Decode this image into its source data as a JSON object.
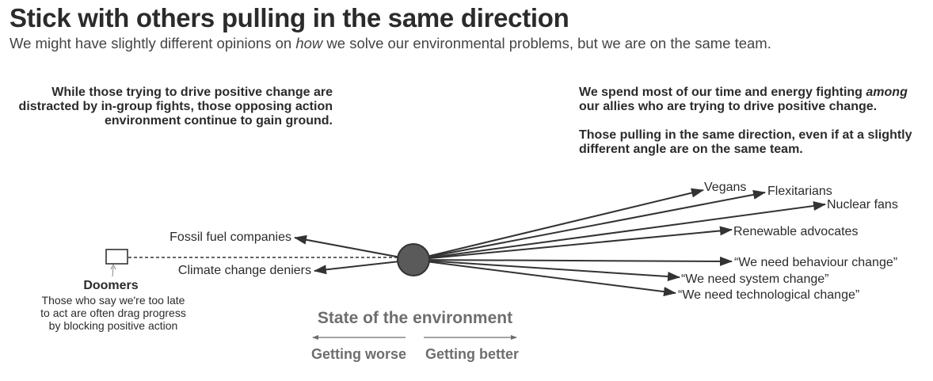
{
  "header": {
    "title": "Stick with others pulling in the same direction",
    "subtitle_pre": "We might have slightly different opinions on ",
    "subtitle_em": "how",
    "subtitle_post": " we solve our environmental problems, but we are on the same team."
  },
  "notes": {
    "left": "While those trying to drive positive change are distracted by in-group fights, those opposing action environment continue to gain ground.",
    "right_p1_pre": "We spend most of our time and energy fighting ",
    "right_p1_em": "among",
    "right_p1_post": " our allies who are trying to drive positive change.",
    "right_p2": "Those pulling in the same direction, even if at a slightly different angle are on the same team."
  },
  "groups": {
    "vegans": "Vegans",
    "flexitarians": "Flexitarians",
    "nuclear": "Nuclear fans",
    "renewable": "Renewable advocates",
    "behaviour": "“We need behaviour change”",
    "system": "“We need system change”",
    "tech": "“We need technological change”",
    "fossil": "Fossil fuel companies",
    "deniers": "Climate change deniers"
  },
  "doomers": {
    "title": "Doomers",
    "desc_1": "Those who say we're too late",
    "desc_2": "to act are often drag progress",
    "desc_3": "by blocking positive action"
  },
  "axis": {
    "title": "State of the environment",
    "worse": "Getting worse",
    "better": "Getting better"
  },
  "colors": {
    "arrow": "#333333",
    "center_fill": "#5a5a5a",
    "axis_text": "#6e6e6e"
  }
}
